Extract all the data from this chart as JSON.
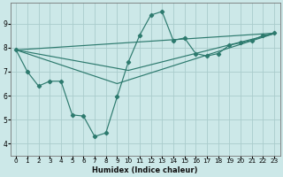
{
  "xlabel": "Humidex (Indice chaleur)",
  "bg_color": "#cce8e8",
  "line_color": "#2d7a6e",
  "grid_color": "#aacccc",
  "xlim": [
    -0.5,
    23.5
  ],
  "ylim": [
    3.5,
    9.85
  ],
  "yticks": [
    4,
    5,
    6,
    7,
    8,
    9
  ],
  "xticks": [
    0,
    1,
    2,
    3,
    4,
    5,
    6,
    7,
    8,
    9,
    10,
    11,
    12,
    13,
    14,
    15,
    16,
    17,
    18,
    19,
    20,
    21,
    22,
    23
  ],
  "main_x": [
    0,
    1,
    2,
    3,
    4,
    5,
    6,
    7,
    8,
    9,
    10,
    11,
    12,
    13,
    14,
    15,
    16,
    17,
    18,
    19,
    20,
    21,
    22,
    23
  ],
  "main_y": [
    7.9,
    7.0,
    6.4,
    6.6,
    6.6,
    5.2,
    5.15,
    4.3,
    4.45,
    5.95,
    7.4,
    8.5,
    9.35,
    9.5,
    8.3,
    8.4,
    7.75,
    7.65,
    7.75,
    8.1,
    8.2,
    8.3,
    8.5,
    8.6
  ],
  "smooth_lines": [
    {
      "x": [
        0,
        23
      ],
      "y": [
        7.9,
        8.6
      ]
    },
    {
      "x": [
        0,
        10,
        23
      ],
      "y": [
        7.9,
        7.05,
        8.58
      ]
    },
    {
      "x": [
        0,
        9,
        23
      ],
      "y": [
        7.9,
        6.5,
        8.58
      ]
    }
  ]
}
